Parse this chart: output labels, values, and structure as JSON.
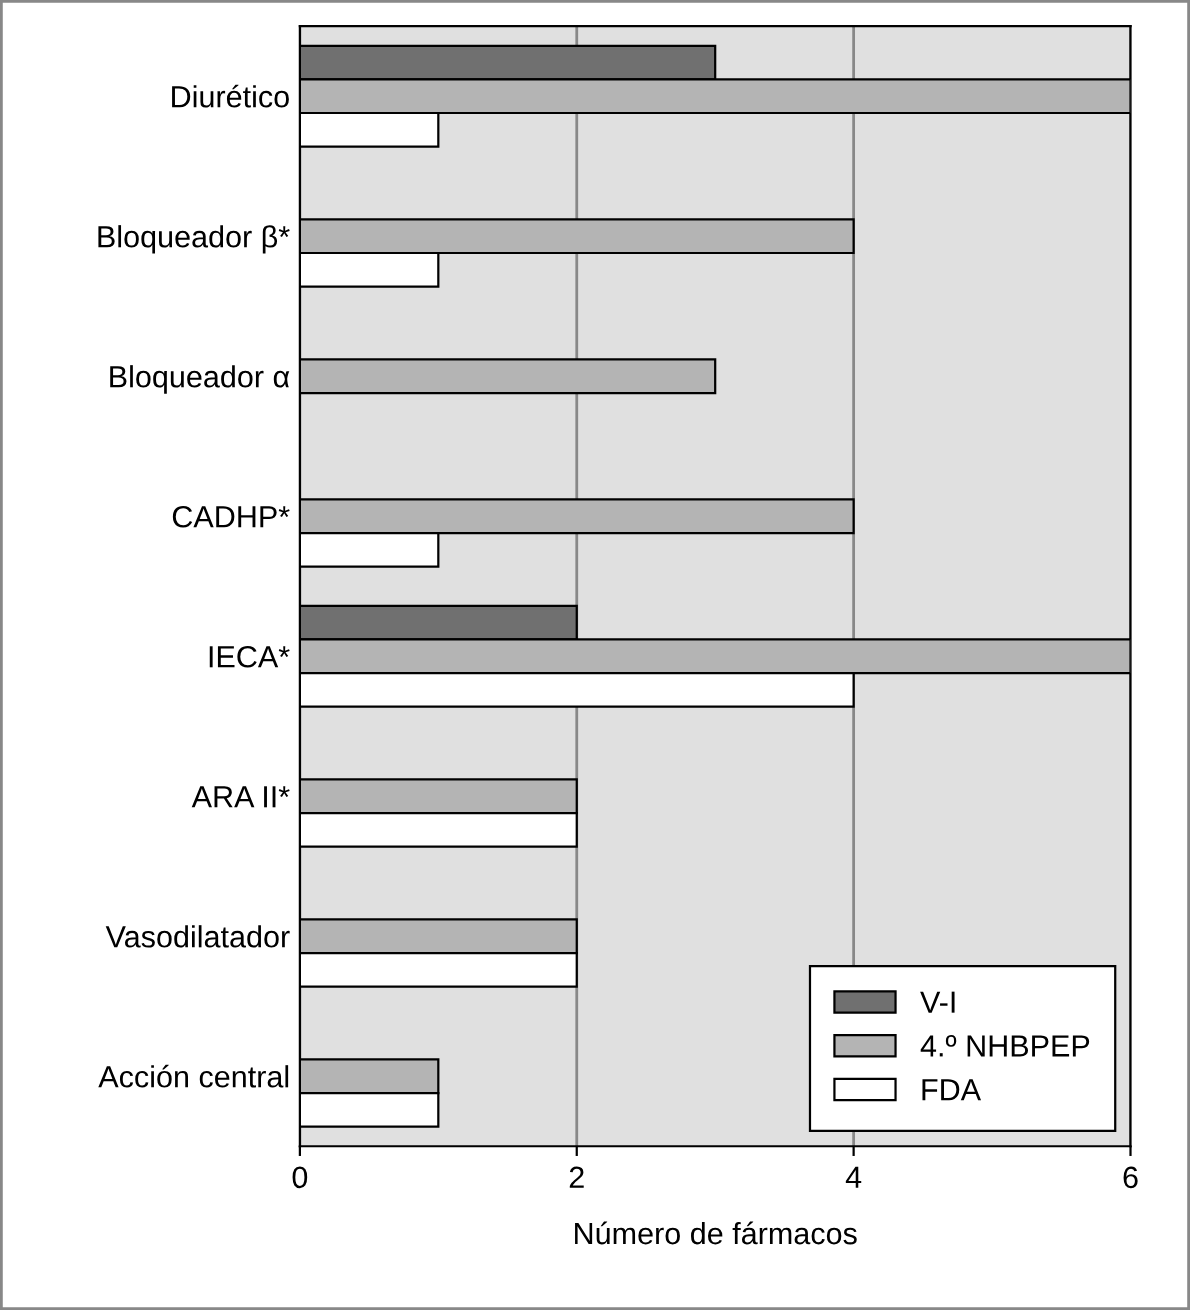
{
  "chart_data": {
    "type": "bar",
    "orientation": "horizontal",
    "xlabel": "Número de fármacos",
    "categories": [
      "Diurético",
      "Bloqueador β*",
      "Bloqueador α",
      "CADHP*",
      "IECA*",
      "ARA II*",
      "Vasodilatador",
      "Acción central"
    ],
    "series": [
      {
        "name": "V-I",
        "color": "#707070",
        "values": [
          3,
          null,
          null,
          null,
          2,
          null,
          null,
          null
        ]
      },
      {
        "name": "4.º NHBPEP",
        "color": "#b4b4b4",
        "values": [
          6,
          4,
          3,
          4,
          6,
          2,
          2,
          1
        ]
      },
      {
        "name": "FDA",
        "color": "#ffffff",
        "values": [
          1,
          1,
          null,
          1,
          4,
          2,
          2,
          1
        ]
      }
    ],
    "xlim": [
      0,
      6
    ],
    "xticks": [
      0,
      2,
      4,
      6
    ],
    "grid": "x",
    "legend": "bottom right"
  }
}
